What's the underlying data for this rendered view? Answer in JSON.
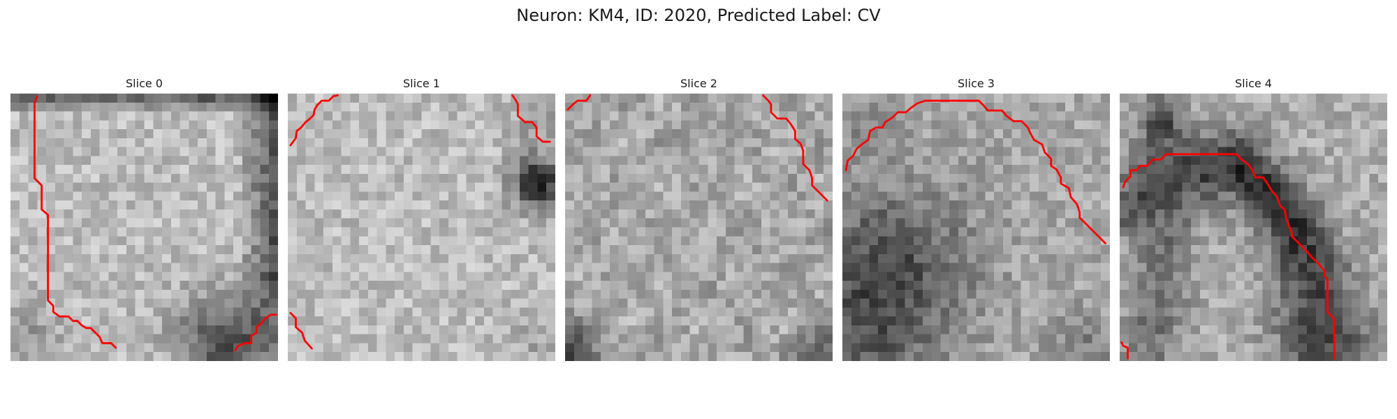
{
  "figure": {
    "title": "Neuron: KM4, ID: 2020, Predicted Label: CV",
    "contour_color": "#ff0000"
  },
  "slices": [
    {
      "label": "Slice 0",
      "contours": [
        [
          [
            3,
            0.3
          ],
          [
            2.7,
            1
          ],
          [
            2.7,
            9.5
          ],
          [
            3.5,
            10.3
          ],
          [
            3.5,
            13
          ],
          [
            4.2,
            13.6
          ],
          [
            4.2,
            23.2
          ],
          [
            4.8,
            23.8
          ],
          [
            4.8,
            24.5
          ],
          [
            5.5,
            25
          ],
          [
            6.5,
            25
          ],
          [
            7,
            25.5
          ],
          [
            7.5,
            25.5
          ],
          [
            8,
            26
          ],
          [
            8.5,
            26.3
          ],
          [
            9,
            26.3
          ],
          [
            10,
            27.3
          ],
          [
            10.3,
            28
          ],
          [
            11.3,
            28
          ],
          [
            11.8,
            28.5
          ]
        ],
        [
          [
            29.8,
            24.8
          ],
          [
            29.2,
            24.8
          ],
          [
            28.6,
            25.2
          ],
          [
            28.1,
            25.8
          ],
          [
            27.6,
            26.2
          ],
          [
            27.6,
            26.8
          ],
          [
            27,
            27.2
          ],
          [
            27,
            28
          ],
          [
            26.3,
            28
          ],
          [
            25.5,
            28.3
          ],
          [
            25.2,
            28.8
          ]
        ]
      ]
    },
    {
      "label": "Slice 1",
      "contours": [
        [
          [
            5.6,
            0.2
          ],
          [
            5.1,
            0.3
          ],
          [
            4.6,
            0.8
          ],
          [
            3.8,
            0.8
          ],
          [
            3.3,
            1.3
          ],
          [
            3,
            1.8
          ],
          [
            2.9,
            2.4
          ],
          [
            2.5,
            2.8
          ],
          [
            2,
            3.2
          ],
          [
            1.5,
            3.8
          ],
          [
            1,
            4.2
          ],
          [
            0.9,
            5
          ],
          [
            0.6,
            5.4
          ],
          [
            0.3,
            5.8
          ]
        ],
        [
          [
            25.2,
            0.2
          ],
          [
            25.6,
            0.8
          ],
          [
            25.8,
            1.2
          ],
          [
            25.8,
            2.5
          ],
          [
            26.6,
            3.2
          ],
          [
            27.4,
            3.2
          ],
          [
            27.9,
            3.8
          ],
          [
            27.9,
            4.8
          ],
          [
            28.6,
            5.4
          ],
          [
            29.4,
            5.4
          ]
        ],
        [
          [
            0.3,
            24.6
          ],
          [
            0.9,
            25.2
          ],
          [
            0.9,
            26.2
          ],
          [
            1.6,
            26.8
          ],
          [
            1.9,
            27.7
          ],
          [
            2.7,
            28.6
          ]
        ]
      ]
    },
    {
      "label": "Slice 2",
      "contours": [
        [
          [
            0.3,
            1.8
          ],
          [
            0.9,
            1.2
          ],
          [
            1.4,
            0.8
          ],
          [
            2.4,
            0.8
          ],
          [
            2.8,
            0.2
          ]
        ],
        [
          [
            22.2,
            0.2
          ],
          [
            22.8,
            0.8
          ],
          [
            23.1,
            1.2
          ],
          [
            23.1,
            2.1
          ],
          [
            23.8,
            2.8
          ],
          [
            24.8,
            2.8
          ],
          [
            25.3,
            3.4
          ],
          [
            25.8,
            4.2
          ],
          [
            25.8,
            5.1
          ],
          [
            26.4,
            5.6
          ],
          [
            26.7,
            6.4
          ],
          [
            26.7,
            7.9
          ],
          [
            27.4,
            8.6
          ],
          [
            27.7,
            9.5
          ],
          [
            27.7,
            10.3
          ],
          [
            28.6,
            11.2
          ],
          [
            29.4,
            12
          ]
        ]
      ]
    },
    {
      "label": "Slice 3",
      "contours": [
        [
          [
            0.4,
            8.6
          ],
          [
            0.6,
            7.5
          ],
          [
            1.2,
            7
          ],
          [
            1.6,
            6.2
          ],
          [
            2.3,
            5.6
          ],
          [
            2.9,
            5.2
          ],
          [
            3.1,
            4.2
          ],
          [
            3.8,
            3.8
          ],
          [
            4.5,
            3.8
          ],
          [
            4.8,
            3.2
          ],
          [
            5.6,
            2.7
          ],
          [
            6.2,
            2.1
          ],
          [
            7.1,
            2.1
          ],
          [
            7.7,
            1.6
          ],
          [
            8.4,
            1.1
          ],
          [
            9.3,
            0.8
          ],
          [
            15.3,
            0.8
          ],
          [
            15.9,
            1.4
          ],
          [
            16.3,
            1.9
          ],
          [
            17.9,
            1.9
          ],
          [
            18.4,
            2.5
          ],
          [
            19.2,
            3.1
          ],
          [
            20.1,
            3.1
          ],
          [
            20.8,
            3.8
          ],
          [
            21.1,
            4.5
          ],
          [
            21.5,
            5.2
          ],
          [
            22.4,
            5.7
          ],
          [
            22.7,
            6.6
          ],
          [
            23.4,
            7.3
          ],
          [
            23.4,
            8.1
          ],
          [
            24,
            8.5
          ],
          [
            24.5,
            9.4
          ],
          [
            24.5,
            10.1
          ],
          [
            25.4,
            10.6
          ],
          [
            25.6,
            11.6
          ],
          [
            26.3,
            12.4
          ],
          [
            26.6,
            13.3
          ],
          [
            26.6,
            13.9
          ],
          [
            27.6,
            14.9
          ],
          [
            28.6,
            15.9
          ],
          [
            29.5,
            16.8
          ]
        ]
      ]
    },
    {
      "label": "Slice 4",
      "contours": [
        [
          [
            0.4,
            10.5
          ],
          [
            0.6,
            9.9
          ],
          [
            1.2,
            9.3
          ],
          [
            1.2,
            8.6
          ],
          [
            1.9,
            8.6
          ],
          [
            2.3,
            8.1
          ],
          [
            3.1,
            8.1
          ],
          [
            3.7,
            7.4
          ],
          [
            4.6,
            7.4
          ],
          [
            5.2,
            6.8
          ],
          [
            13.1,
            6.8
          ],
          [
            13.8,
            7.5
          ],
          [
            14.4,
            7.9
          ],
          [
            14.9,
            8.6
          ],
          [
            15.2,
            9.4
          ],
          [
            16.1,
            9.4
          ],
          [
            16.7,
            10.3
          ],
          [
            17.1,
            11
          ],
          [
            17.6,
            11.5
          ],
          [
            18,
            12.6
          ],
          [
            18.5,
            13
          ],
          [
            18.7,
            14.1
          ],
          [
            19.3,
            15.6
          ],
          [
            19.3,
            16
          ],
          [
            20.1,
            16.8
          ],
          [
            20.9,
            17.6
          ],
          [
            21.5,
            18.3
          ],
          [
            22.3,
            19.1
          ],
          [
            22.9,
            19.8
          ],
          [
            23,
            20.5
          ],
          [
            23.3,
            20.8
          ],
          [
            23.3,
            24.5
          ],
          [
            24,
            25.2
          ],
          [
            24.1,
            29.7
          ]
        ],
        [
          [
            0.2,
            27.9
          ],
          [
            0.4,
            28.3
          ],
          [
            0.9,
            28.5
          ],
          [
            0.9,
            29.7
          ]
        ]
      ]
    }
  ]
}
